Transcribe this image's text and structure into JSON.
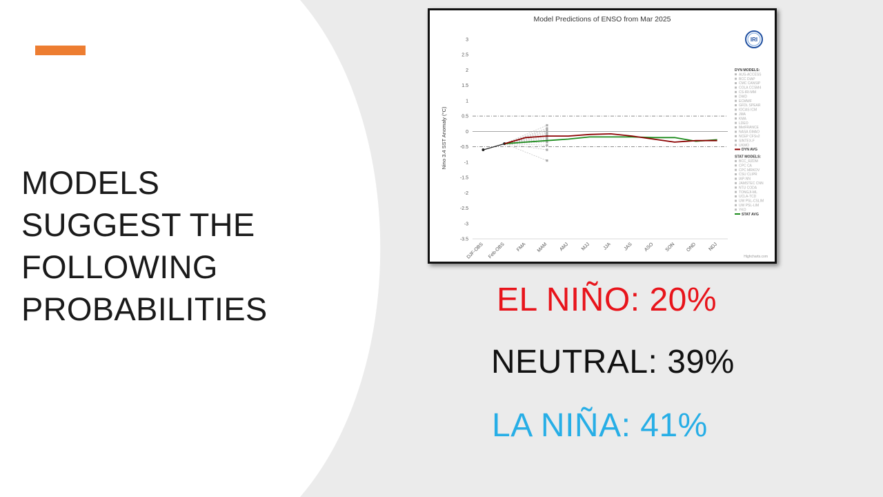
{
  "colors": {
    "accent": "#ed7d31",
    "el_nino": "#e8141b",
    "neutral": "#111111",
    "la_nina": "#27aee6",
    "dyn_avg": "#8b0000",
    "stat_avg": "#1a8a1a",
    "panel_bg": "#ffffff",
    "slide_bg": "#ebebeb"
  },
  "headline": {
    "lines": [
      "MODELS",
      "SUGGEST THE",
      "FOLLOWING",
      "PROBABILITIES"
    ]
  },
  "probabilities": {
    "el_nino": "EL NIÑO: 20%",
    "neutral": "NEUTRAL: 39%",
    "la_nina": "LA NIÑA: 41%"
  },
  "logo": {
    "text": "IRI",
    "icon": "iri-globe-icon"
  },
  "credit": "Highcharts.com",
  "chart_data": {
    "type": "line",
    "title": "Model Predictions of ENSO from Mar 2025",
    "xlabel": "",
    "ylabel": "Nino 3.4 SST Anomaly (°C)",
    "categories": [
      "DJF-OBS",
      "Feb-OBS",
      "FMA",
      "MAM",
      "AMJ",
      "MJJ",
      "JJA",
      "JAS",
      "ASO",
      "SON",
      "OND",
      "NDJ"
    ],
    "yticks": [
      "3",
      "2.5",
      "2",
      "1.5",
      "1",
      "0.5",
      "0",
      "-0.5",
      "-1",
      "-1.5",
      "-2",
      "-2.5",
      "-3",
      "-3.5"
    ],
    "ylim": [
      -3.5,
      3
    ],
    "reference_lines": [
      0.5,
      -0.5
    ],
    "grid": false,
    "legend_position": "right",
    "legend_dyn_header": "DYN MODELS:",
    "legend_dyn": [
      "AUS-ACCESS",
      "BCC DIAP",
      "CMC CANSIP",
      "COLA CCSM4",
      "CS-IRI-MM",
      "DWD",
      "ECMWF",
      "GFDL SPEAR",
      "IOCAS ICM",
      "JMA",
      "KMA",
      "LDEO",
      "MetFRANCE",
      "NASA GMAO",
      "NCEP CFSv2",
      "SINTEX-F",
      "UKMO"
    ],
    "legend_dyn_avg": "DYN AVG",
    "legend_stat_header": "STAT MODELS:",
    "legend_stat": [
      "BCC_RZDM",
      "CPC CA",
      "CPC MRKOV",
      "CSU CLIPR",
      "IAP-NN",
      "JAMSTEC CNN",
      "NTU CODA",
      "TONGJI-ML",
      "UCLA-TCD",
      "UW PSL-CSLIM",
      "UW PSL-LIM",
      "YKO"
    ],
    "legend_stat_avg": "STAT AVG",
    "series": [
      {
        "name": "OBS",
        "x": [
          "DJF-OBS",
          "Feb-OBS"
        ],
        "values": [
          -0.6,
          -0.4
        ]
      },
      {
        "name": "DYN AVG",
        "x": [
          "Feb-OBS",
          "FMA",
          "MAM",
          "AMJ",
          "MJJ",
          "JJA",
          "JAS",
          "ASO",
          "SON",
          "OND",
          "NDJ"
        ],
        "values": [
          -0.4,
          -0.2,
          -0.15,
          -0.15,
          -0.1,
          -0.08,
          -0.15,
          -0.25,
          -0.35,
          -0.3,
          -0.3
        ]
      },
      {
        "name": "STAT AVG",
        "x": [
          "Feb-OBS",
          "FMA",
          "MAM",
          "AMJ",
          "MJJ",
          "JJA",
          "JAS",
          "ASO",
          "SON",
          "OND",
          "NDJ"
        ],
        "values": [
          -0.4,
          -0.35,
          -0.3,
          -0.25,
          -0.18,
          -0.18,
          -0.18,
          -0.2,
          -0.2,
          -0.32,
          -0.27
        ]
      },
      {
        "name": "model spread at MAM",
        "x": [
          "MAM",
          "MAM",
          "MAM",
          "MAM",
          "MAM",
          "MAM",
          "MAM",
          "MAM",
          "MAM",
          "MAM",
          "MAM",
          "MAM",
          "MAM",
          "MAM"
        ],
        "values": [
          0.2,
          0.1,
          0.05,
          0.0,
          -0.05,
          -0.1,
          -0.15,
          -0.2,
          -0.25,
          -0.3,
          -0.35,
          -0.45,
          -0.6,
          -0.95
        ]
      }
    ]
  }
}
